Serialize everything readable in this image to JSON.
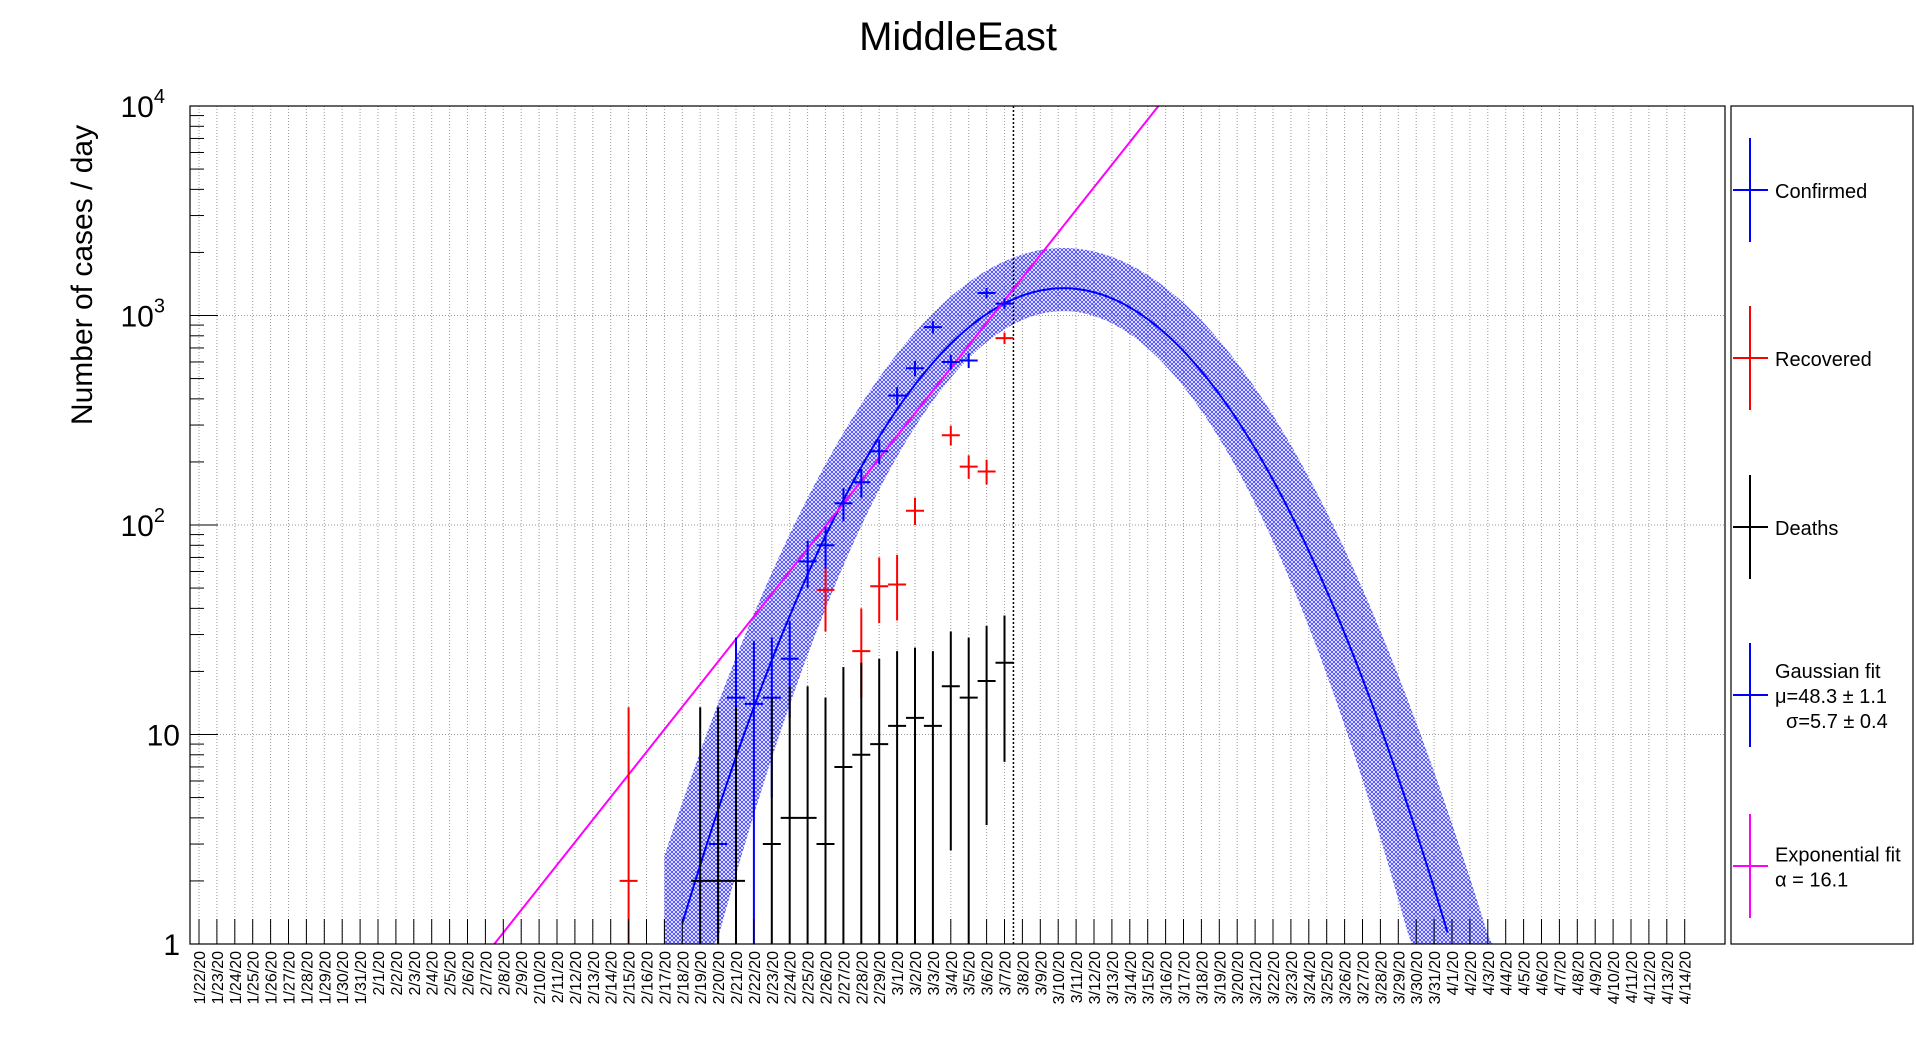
{
  "chart_data": {
    "type": "scatter",
    "title": "MiddleEast",
    "ylabel": "Number of cases / day",
    "xlabel": "",
    "yscale": "log",
    "ylim": [
      1,
      10000
    ],
    "grid": true,
    "legend_position": "right",
    "categories": [
      "1/22/20",
      "1/23/20",
      "1/24/20",
      "1/25/20",
      "1/26/20",
      "1/27/20",
      "1/28/20",
      "1/29/20",
      "1/30/20",
      "1/31/20",
      "2/1/20",
      "2/2/20",
      "2/3/20",
      "2/4/20",
      "2/5/20",
      "2/6/20",
      "2/7/20",
      "2/8/20",
      "2/9/20",
      "2/10/20",
      "2/11/20",
      "2/12/20",
      "2/13/20",
      "2/14/20",
      "2/15/20",
      "2/16/20",
      "2/17/20",
      "2/18/20",
      "2/19/20",
      "2/20/20",
      "2/21/20",
      "2/22/20",
      "2/23/20",
      "2/24/20",
      "2/25/20",
      "2/26/20",
      "2/27/20",
      "2/28/20",
      "2/29/20",
      "3/1/20",
      "3/2/20",
      "3/3/20",
      "3/4/20",
      "3/5/20",
      "3/6/20",
      "3/7/20",
      "3/8/20",
      "3/9/20",
      "3/10/20",
      "3/11/20",
      "3/12/20",
      "3/13/20",
      "3/14/20",
      "3/15/20",
      "3/16/20",
      "3/17/20",
      "3/18/20",
      "3/19/20",
      "3/20/20",
      "3/21/20",
      "3/22/20",
      "3/23/20",
      "3/24/20",
      "3/25/20",
      "3/26/20",
      "3/27/20",
      "3/28/20",
      "3/29/20",
      "3/30/20",
      "3/31/20",
      "4/1/20",
      "4/2/20",
      "4/3/20",
      "4/4/20",
      "4/5/20",
      "4/6/20",
      "4/7/20",
      "4/8/20",
      "4/9/20",
      "4/10/20",
      "4/11/20",
      "4/12/20",
      "4/13/20",
      "4/14/20"
    ],
    "y_tick_labels": [
      {
        "value": 1,
        "base": "1",
        "exp": ""
      },
      {
        "value": 10,
        "base": "10",
        "exp": ""
      },
      {
        "value": 100,
        "base": "10",
        "exp": "2"
      },
      {
        "value": 1000,
        "base": "10",
        "exp": "3"
      },
      {
        "value": 10000,
        "base": "10",
        "exp": "4"
      }
    ],
    "vertical_marker_index": 45.5,
    "series": [
      {
        "name": "Confirmed",
        "color": "#0000ff",
        "kind": "points",
        "points": [
          {
            "i": 29,
            "y": 3,
            "lo": 1,
            "hi": 8
          },
          {
            "i": 30,
            "y": 15,
            "lo": 1,
            "hi": 29
          },
          {
            "i": 31,
            "y": 14,
            "lo": 1,
            "hi": 28
          },
          {
            "i": 32,
            "y": 15,
            "lo": 5,
            "hi": 29
          },
          {
            "i": 33,
            "y": 23,
            "lo": 12,
            "hi": 35
          },
          {
            "i": 34,
            "y": 67,
            "lo": 50,
            "hi": 84
          },
          {
            "i": 35,
            "y": 80,
            "lo": 62,
            "hi": 98
          },
          {
            "i": 36,
            "y": 127,
            "lo": 104,
            "hi": 150
          },
          {
            "i": 37,
            "y": 160,
            "lo": 135,
            "hi": 185
          },
          {
            "i": 38,
            "y": 225,
            "lo": 195,
            "hi": 255
          },
          {
            "i": 39,
            "y": 415,
            "lo": 375,
            "hi": 455
          },
          {
            "i": 40,
            "y": 560,
            "lo": 513,
            "hi": 607
          },
          {
            "i": 41,
            "y": 880,
            "lo": 820,
            "hi": 940
          },
          {
            "i": 42,
            "y": 600,
            "lo": 551,
            "hi": 649
          },
          {
            "i": 43,
            "y": 610,
            "lo": 561,
            "hi": 659
          },
          {
            "i": 44,
            "y": 1280,
            "lo": 1208,
            "hi": 1352
          },
          {
            "i": 45,
            "y": 1140,
            "lo": 1072,
            "hi": 1208
          }
        ]
      },
      {
        "name": "Recovered",
        "color": "#ff0000",
        "kind": "points",
        "points": [
          {
            "i": 24,
            "y": 2,
            "lo": 1,
            "hi": 13.5
          },
          {
            "i": 35,
            "y": 49,
            "lo": 31,
            "hi": 62
          },
          {
            "i": 37,
            "y": 25,
            "lo": 15,
            "hi": 40
          },
          {
            "i": 38,
            "y": 51,
            "lo": 34,
            "hi": 70
          },
          {
            "i": 39,
            "y": 52,
            "lo": 35,
            "hi": 72
          },
          {
            "i": 40,
            "y": 117,
            "lo": 100,
            "hi": 135
          },
          {
            "i": 42,
            "y": 268,
            "lo": 240,
            "hi": 298
          },
          {
            "i": 43,
            "y": 190,
            "lo": 166,
            "hi": 215
          },
          {
            "i": 44,
            "y": 180,
            "lo": 156,
            "hi": 205
          },
          {
            "i": 45,
            "y": 780,
            "lo": 730,
            "hi": 830
          }
        ]
      },
      {
        "name": "Deaths",
        "color": "#000000",
        "kind": "points",
        "points": [
          {
            "i": 28,
            "y": 2,
            "lo": 1,
            "hi": 13.5
          },
          {
            "i": 29,
            "y": 2,
            "lo": 1,
            "hi": 13.5
          },
          {
            "i": 30,
            "y": 2,
            "lo": 1,
            "hi": 13.5
          },
          {
            "i": 32,
            "y": 3,
            "lo": 1,
            "hi": 15
          },
          {
            "i": 33,
            "y": 4,
            "lo": 1,
            "hi": 17
          },
          {
            "i": 34,
            "y": 4,
            "lo": 1,
            "hi": 17
          },
          {
            "i": 35,
            "y": 3,
            "lo": 1,
            "hi": 15
          },
          {
            "i": 36,
            "y": 7,
            "lo": 1,
            "hi": 21
          },
          {
            "i": 37,
            "y": 8,
            "lo": 1,
            "hi": 22
          },
          {
            "i": 38,
            "y": 9,
            "lo": 1,
            "hi": 23
          },
          {
            "i": 39,
            "y": 11,
            "lo": 1,
            "hi": 25
          },
          {
            "i": 40,
            "y": 12,
            "lo": 1,
            "hi": 26
          },
          {
            "i": 41,
            "y": 11,
            "lo": 1,
            "hi": 25
          },
          {
            "i": 42,
            "y": 17,
            "lo": 2.8,
            "hi": 31
          },
          {
            "i": 43,
            "y": 15,
            "lo": 1,
            "hi": 29
          },
          {
            "i": 44,
            "y": 18,
            "lo": 3.7,
            "hi": 33
          },
          {
            "i": 45,
            "y": 22,
            "lo": 7.4,
            "hi": 37
          }
        ]
      },
      {
        "name": "Gaussian fit",
        "color": "#0000ff",
        "kind": "gaussian",
        "label_lines": [
          "Gaussian fit",
          "μ=48.3 ± 1.1",
          "σ=5.7 ± 0.4"
        ],
        "mu": 48.3,
        "sigma": 5.7,
        "peak": 1350,
        "band_color": "#4444ff",
        "band_upper_peak": 2100,
        "band_upper_sigma": 6.1,
        "band_lower_peak": 1050,
        "band_lower_sigma": 5.2
      },
      {
        "name": "Exponential fit",
        "color": "#ff00ff",
        "kind": "exponential",
        "label_lines": [
          "Exponential fit",
          "α = 16.1"
        ],
        "x_start": 16.5,
        "y_start": 1.0,
        "x_end": 53.6,
        "y_end": 10000
      }
    ]
  }
}
